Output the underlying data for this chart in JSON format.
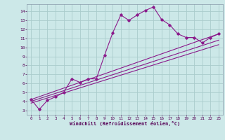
{
  "x": [
    0,
    1,
    2,
    3,
    4,
    5,
    6,
    7,
    8,
    9,
    10,
    11,
    12,
    13,
    14,
    15,
    16,
    17,
    18,
    19,
    20,
    21,
    22,
    23
  ],
  "y_main": [
    4.2,
    3.1,
    4.1,
    4.5,
    5.0,
    6.5,
    6.1,
    6.5,
    6.5,
    9.1,
    11.6,
    13.6,
    13.0,
    13.6,
    14.1,
    14.5,
    13.1,
    12.5,
    11.5,
    11.1,
    11.1,
    10.5,
    11.1,
    11.5
  ],
  "line_color": "#8B1A8B",
  "bg_color": "#cce8e8",
  "grid_color": "#aacccc",
  "xlabel": "Windchill (Refroidissement éolien,°C)",
  "ylabel": "",
  "xlim": [
    -0.5,
    23.5
  ],
  "ylim": [
    2.5,
    14.8
  ],
  "yticks": [
    3,
    4,
    5,
    6,
    7,
    8,
    9,
    10,
    11,
    12,
    13,
    14
  ],
  "xticks": [
    0,
    1,
    2,
    3,
    4,
    5,
    6,
    7,
    8,
    9,
    10,
    11,
    12,
    13,
    14,
    15,
    16,
    17,
    18,
    19,
    20,
    21,
    22,
    23
  ],
  "trend_lines": [
    {
      "x0": 0,
      "y0": 4.2,
      "x1": 23,
      "y1": 11.5
    },
    {
      "x0": 0,
      "y0": 4.0,
      "x1": 23,
      "y1": 10.8
    },
    {
      "x0": 0,
      "y0": 3.8,
      "x1": 23,
      "y1": 10.3
    }
  ]
}
